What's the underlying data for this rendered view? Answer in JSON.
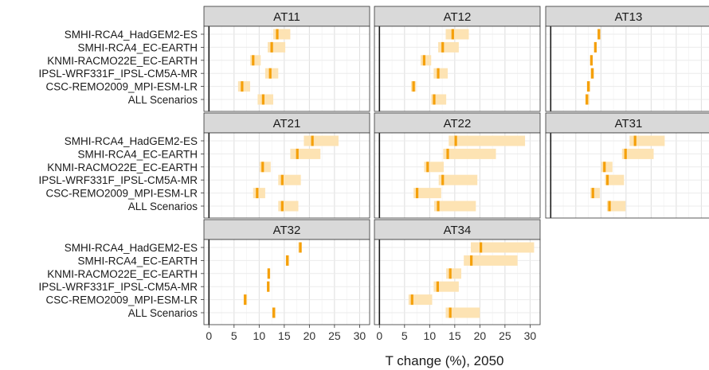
{
  "chart_data": {
    "type": "range",
    "xlabel": "T change (%), 2050",
    "xlim": [
      -1,
      32
    ],
    "xticks": [
      0,
      5,
      10,
      15,
      20,
      25,
      30
    ],
    "scenarios": [
      "SMHI-RCA4_HadGEM2-ES",
      "SMHI-RCA4_EC-EARTH",
      "KNMI-RACMO22E_EC-EARTH",
      "IPSL-WRF331F_IPSL-CM5A-MR",
      "CSC-REMO2009_MPI-ESM-LR",
      "ALL Scenarios"
    ],
    "colors": {
      "range": "#fde3b3",
      "median": "#f5a00a",
      "strip": "#d9d9d9"
    },
    "panels": [
      {
        "name": "AT11",
        "ranges": [
          [
            12.8,
            16.2
          ],
          [
            11.7,
            15.2
          ],
          [
            8.2,
            10.3
          ],
          [
            11.2,
            13.8
          ],
          [
            5.8,
            8.2
          ],
          [
            9.7,
            12.8
          ]
        ],
        "medians": [
          13.6,
          12.5,
          8.8,
          12.2,
          6.6,
          10.8
        ]
      },
      {
        "name": "AT12",
        "ranges": [
          [
            13.2,
            17.8
          ],
          [
            11.7,
            15.8
          ],
          [
            8.2,
            10.3
          ],
          [
            10.8,
            13.6
          ],
          [
            6.3,
            7.3
          ],
          [
            10.3,
            13.3
          ]
        ],
        "medians": [
          14.6,
          12.6,
          8.9,
          11.7,
          6.8,
          10.9
        ]
      },
      {
        "name": "AT13",
        "ranges": [
          [
            9.3,
            9.9
          ],
          [
            8.6,
            9.1
          ],
          [
            7.9,
            8.4
          ],
          [
            7.9,
            8.6
          ],
          [
            7.2,
            7.9
          ],
          [
            6.9,
            7.7
          ]
        ],
        "medians": [
          9.6,
          8.9,
          8.1,
          8.3,
          7.5,
          7.2
        ]
      },
      {
        "name": "AT21",
        "ranges": [
          [
            18.9,
            25.8
          ],
          [
            16.2,
            22.2
          ],
          [
            10.1,
            12.3
          ],
          [
            13.8,
            18.3
          ],
          [
            8.8,
            11.2
          ],
          [
            13.8,
            17.8
          ]
        ],
        "medians": [
          20.6,
          17.6,
          10.7,
          14.6,
          9.6,
          14.6
        ]
      },
      {
        "name": "AT22",
        "ranges": [
          [
            13.8,
            29.0
          ],
          [
            12.7,
            23.2
          ],
          [
            8.9,
            12.8
          ],
          [
            11.8,
            19.5
          ],
          [
            6.8,
            12.3
          ],
          [
            10.9,
            19.2
          ]
        ],
        "medians": [
          15.2,
          13.6,
          9.6,
          12.6,
          7.5,
          11.7
        ]
      },
      {
        "name": "AT31",
        "ranges": [
          [
            15.7,
            22.7
          ],
          [
            14.2,
            20.5
          ],
          [
            10.1,
            12.3
          ],
          [
            10.8,
            14.6
          ],
          [
            7.9,
            9.8
          ],
          [
            11.2,
            14.9
          ]
        ],
        "medians": [
          16.8,
          14.9,
          10.7,
          11.3,
          8.4,
          11.7
        ]
      },
      {
        "name": "AT32",
        "ranges": [
          [
            17.8,
            18.5
          ],
          [
            15.3,
            16.0
          ],
          [
            11.7,
            12.2
          ],
          [
            11.6,
            12.1
          ],
          [
            6.9,
            7.6
          ],
          [
            12.6,
            13.3
          ]
        ],
        "medians": [
          18.2,
          15.6,
          11.9,
          11.8,
          7.2,
          12.9
        ]
      },
      {
        "name": "AT34",
        "ranges": [
          [
            18.2,
            30.8
          ],
          [
            16.8,
            27.5
          ],
          [
            13.3,
            16.3
          ],
          [
            10.8,
            15.8
          ],
          [
            5.8,
            10.5
          ],
          [
            13.2,
            20.0
          ]
        ],
        "medians": [
          20.2,
          18.3,
          14.1,
          11.6,
          6.5,
          14.1
        ]
      }
    ]
  }
}
